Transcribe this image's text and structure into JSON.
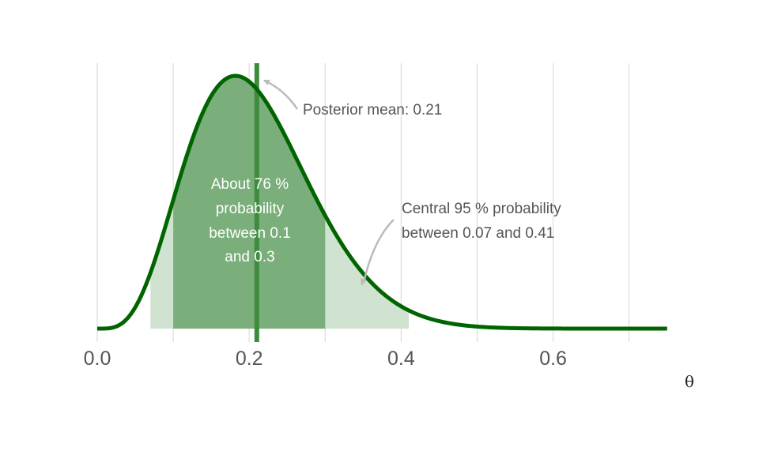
{
  "chart_data": {
    "type": "area",
    "title": "",
    "xlabel": "θ",
    "ylabel": "",
    "xlim": [
      0,
      0.75
    ],
    "x_ticks": [
      "0.0",
      "0.2",
      "0.4",
      "0.6"
    ],
    "gridlines_x": [
      0.0,
      0.1,
      0.2,
      0.3,
      0.4,
      0.5,
      0.6,
      0.7
    ],
    "grid": true,
    "distribution": {
      "family": "beta",
      "alpha": 5,
      "beta": 19
    },
    "posterior_mean": 0.21,
    "inner_interval": [
      0.1,
      0.3
    ],
    "central_interval": [
      0.07,
      0.41
    ],
    "colors": {
      "curve": "#006400",
      "inner_fill": "#7aae7a",
      "outer_fill": "#d0e3d0",
      "mean_line": "#3d8b3d",
      "grid": "#dddddd",
      "arrow": "#bbbbbb"
    },
    "annotations": {
      "mean": "Posterior mean: 0.21",
      "inner": [
        "About 76 %",
        "probability",
        "between 0.1",
        "and 0.3"
      ],
      "central": [
        "Central 95 % probability",
        "between 0.07 and 0.41"
      ]
    }
  }
}
